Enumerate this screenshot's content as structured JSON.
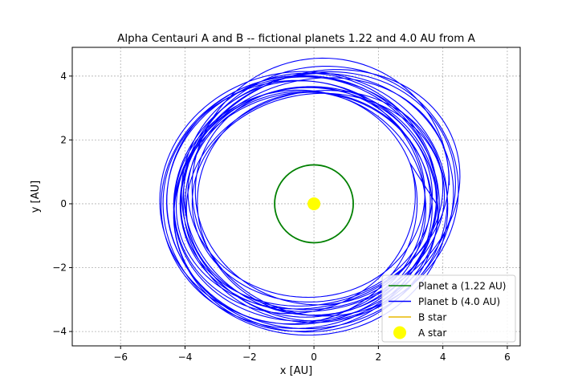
{
  "chart_data": {
    "type": "line",
    "title": "Alpha Centauri A and B -- fictional planets 1.22 and 4.0 AU from A",
    "xlabel": "x [AU]",
    "ylabel": "y [AU]",
    "xlim": [
      -7.5,
      6.4
    ],
    "ylim": [
      -4.45,
      4.9
    ],
    "xticks": [
      -6,
      -4,
      -2,
      0,
      2,
      4,
      6
    ],
    "yticks": [
      -4,
      -2,
      0,
      2,
      4
    ],
    "xtick_labels": [
      "−6",
      "−4",
      "−2",
      "0",
      "2",
      "4",
      "6"
    ],
    "ytick_labels": [
      "−4",
      "−2",
      "0",
      "2",
      "4"
    ],
    "grid": true,
    "legend_position": "lower-right",
    "series": [
      {
        "name": "Planet a (1.22 AU)",
        "color": "#008000",
        "kind": "circle-orbit",
        "center": [
          0,
          0
        ],
        "radius": 1.22
      },
      {
        "name": "Planet b (4.0 AU)",
        "color": "#0000ff",
        "kind": "precessing-orbit",
        "center_start": [
          0.2,
          0.4
        ],
        "center_end": [
          -0.5,
          -0.1
        ],
        "radius_x_range": [
          3.6,
          4.4
        ],
        "radius_y_range": [
          3.3,
          4.0
        ],
        "start_point": [
          3.8,
          0.0
        ],
        "end_point": [
          3.8,
          0.0
        ],
        "turns": 22
      },
      {
        "name": "B star",
        "color": "#e8b800",
        "kind": "line",
        "x": [],
        "y": []
      },
      {
        "name": "A star",
        "color": "#ffff00",
        "kind": "point",
        "x": [
          0
        ],
        "y": [
          0
        ]
      }
    ]
  }
}
